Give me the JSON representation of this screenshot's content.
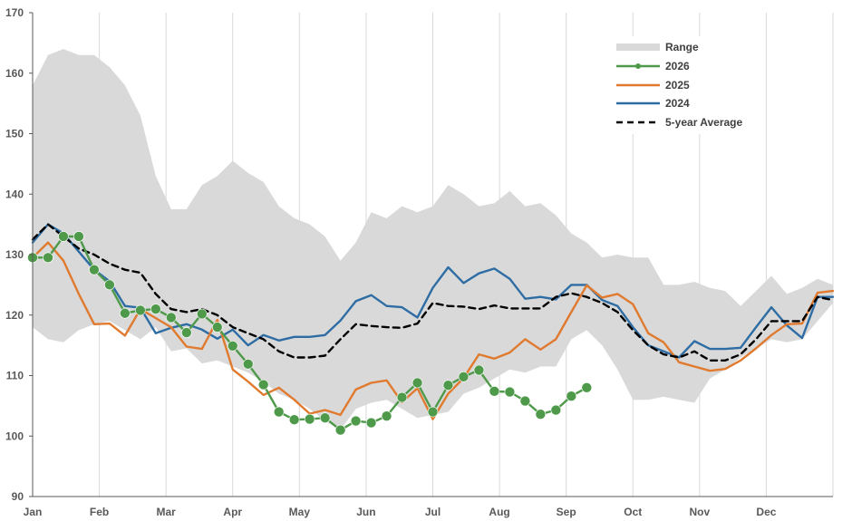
{
  "chart_data": {
    "type": "line",
    "title": "",
    "xlabel": "",
    "ylabel": "",
    "ylim": [
      90,
      170
    ],
    "yticks": [
      90,
      100,
      110,
      120,
      130,
      140,
      150,
      160,
      170
    ],
    "xlim": [
      1,
      53
    ],
    "xtick_labels": [
      "Jan",
      "Feb",
      "Mar",
      "Apr",
      "May",
      "Jun",
      "Jul",
      "Aug",
      "Sep",
      "Oct",
      "Nov",
      "Dec"
    ],
    "grid": "vertical lines at month boundaries",
    "legend_position": "top-right",
    "legend": [
      "Range",
      "2026",
      "2025",
      "2024",
      "5-year Average"
    ],
    "colors": {
      "range": "#d9d9d9",
      "s2026": "#4e9a4a",
      "s2025": "#e07a2f",
      "s2024": "#2e6da4",
      "avg": "#000000",
      "axis": "#595959"
    },
    "range": {
      "name": "Range",
      "x": [
        1,
        2,
        3,
        4,
        5,
        6,
        7,
        8,
        9,
        10,
        11,
        12,
        13,
        14,
        15,
        16,
        17,
        18,
        19,
        20,
        21,
        22,
        23,
        24,
        25,
        26,
        27,
        28,
        29,
        30,
        31,
        32,
        33,
        34,
        35,
        36,
        37,
        38,
        39,
        40,
        41,
        42,
        43,
        44,
        45,
        46,
        47,
        48,
        49,
        50,
        51,
        52,
        53
      ],
      "upper": [
        158,
        163,
        164,
        163,
        163,
        161,
        158,
        153,
        143,
        137.5,
        137.5,
        141.5,
        143,
        145.5,
        143.5,
        142,
        138,
        136,
        135,
        133,
        129,
        132,
        137,
        136,
        138,
        137,
        138,
        141.5,
        140,
        138,
        138.5,
        140.5,
        138,
        138.5,
        136.5,
        133.5,
        132,
        129.5,
        130,
        129.5,
        129.5,
        125,
        125,
        125.5,
        124.5,
        124,
        121.5,
        124,
        126.5,
        123.5,
        124.5,
        126,
        125
      ],
      "lower": [
        118,
        116,
        115.5,
        117.5,
        118.5,
        119,
        117.5,
        116,
        118,
        114,
        114.5,
        112,
        112.5,
        111.5,
        110.5,
        109,
        107,
        106,
        104.5,
        102.5,
        101,
        104.5,
        105.5,
        106,
        104.5,
        103,
        103.5,
        104,
        107,
        108,
        109.5,
        111,
        110.5,
        111.5,
        111.5,
        116,
        117.5,
        115,
        111,
        106,
        106,
        106.5,
        106,
        105.5,
        109.5,
        111,
        113,
        114.5,
        116,
        115.5,
        116,
        119,
        122
      ]
    },
    "series": [
      {
        "name": "2026",
        "x": [
          1,
          2,
          3,
          4,
          5,
          6,
          7,
          8,
          9,
          10,
          11,
          12,
          13,
          14,
          15,
          16,
          17,
          18,
          19,
          20,
          21,
          22,
          23,
          24,
          25,
          26,
          27,
          28,
          29,
          30,
          31,
          32,
          33,
          34,
          35,
          36,
          37
        ],
        "values": [
          129.5,
          129.5,
          133,
          133,
          127.5,
          125,
          120.3,
          120.8,
          121,
          119.6,
          117.1,
          120.2,
          118,
          114.9,
          111.9,
          108.5,
          104,
          102.7,
          102.8,
          103,
          101,
          102.5,
          102.2,
          103.3,
          106.4,
          108.8,
          104,
          108.4,
          109.8,
          110.9,
          107.4,
          107.3,
          105.8,
          103.6,
          104.3,
          106.6,
          108
        ]
      },
      {
        "name": "2025",
        "x": [
          1,
          2,
          3,
          4,
          5,
          6,
          7,
          8,
          9,
          10,
          11,
          12,
          13,
          14,
          15,
          16,
          17,
          18,
          19,
          20,
          21,
          22,
          23,
          24,
          25,
          26,
          27,
          28,
          29,
          30,
          31,
          32,
          33,
          34,
          35,
          36,
          37,
          38,
          39,
          40,
          41,
          42,
          43,
          44,
          45,
          46,
          47,
          48,
          49,
          50,
          51,
          52,
          53
        ],
        "values": [
          129.5,
          132,
          129,
          123.5,
          118.5,
          118.6,
          116.6,
          121,
          119.5,
          118,
          114.8,
          114.4,
          119.2,
          111,
          109,
          106.8,
          108,
          106,
          103.7,
          104.3,
          103.5,
          107.7,
          108.8,
          109.2,
          105.6,
          107.9,
          102.8,
          107,
          109.6,
          113.5,
          112.8,
          113.8,
          116,
          114.3,
          116,
          120.5,
          124.9,
          122.9,
          123.5,
          121.8,
          117,
          115.5,
          112.2,
          111.5,
          110.8,
          111.1,
          112.5,
          114.5,
          116.7,
          118.5,
          118.6,
          123.7,
          124
        ]
      },
      {
        "name": "2024",
        "x": [
          1,
          2,
          3,
          4,
          5,
          6,
          7,
          8,
          9,
          10,
          11,
          12,
          13,
          14,
          15,
          16,
          17,
          18,
          19,
          20,
          21,
          22,
          23,
          24,
          25,
          26,
          27,
          28,
          29,
          30,
          31,
          32,
          33,
          34,
          35,
          36,
          37,
          38,
          39,
          40,
          41,
          42,
          43,
          44,
          45,
          46,
          47,
          48,
          49,
          50,
          51,
          52,
          53
        ],
        "values": [
          132,
          135,
          133.5,
          130.5,
          127.5,
          125.6,
          121.5,
          121.2,
          117,
          117.9,
          118.5,
          117.6,
          116.1,
          117.6,
          115,
          116.7,
          115.8,
          116.4,
          116.4,
          116.7,
          119.1,
          122.3,
          123.3,
          121.5,
          121.3,
          119.6,
          124.5,
          127.9,
          125.3,
          126.9,
          127.7,
          126,
          122.7,
          123,
          122.6,
          125,
          125,
          122.5,
          121.5,
          118,
          115,
          114,
          113,
          115.7,
          114.4,
          114.4,
          114.6,
          118,
          121.3,
          118.3,
          116.2,
          123,
          123
        ]
      },
      {
        "name": "5-year Average",
        "style": "dashed",
        "x": [
          1,
          2,
          3,
          4,
          5,
          6,
          7,
          8,
          9,
          10,
          11,
          12,
          13,
          14,
          15,
          16,
          17,
          18,
          19,
          20,
          21,
          22,
          23,
          24,
          25,
          26,
          27,
          28,
          29,
          30,
          31,
          32,
          33,
          34,
          35,
          36,
          37,
          38,
          39,
          40,
          41,
          42,
          43,
          44,
          45,
          46,
          47,
          48,
          49,
          50,
          51,
          52,
          53
        ],
        "values": [
          132.5,
          135,
          133,
          131,
          130,
          128.5,
          127.5,
          127,
          123.5,
          121,
          120.5,
          121,
          120,
          118,
          117,
          116,
          114,
          113,
          113,
          113.3,
          116,
          118.5,
          118.2,
          118,
          117.9,
          118.6,
          122,
          121.5,
          121.4,
          121,
          121.6,
          121.1,
          121.1,
          121.1,
          123,
          123.6,
          123,
          122,
          120.5,
          117.5,
          115,
          113.5,
          113,
          114,
          112.5,
          112.5,
          113.5,
          116,
          119,
          119,
          119,
          123,
          122.5
        ]
      }
    ]
  }
}
